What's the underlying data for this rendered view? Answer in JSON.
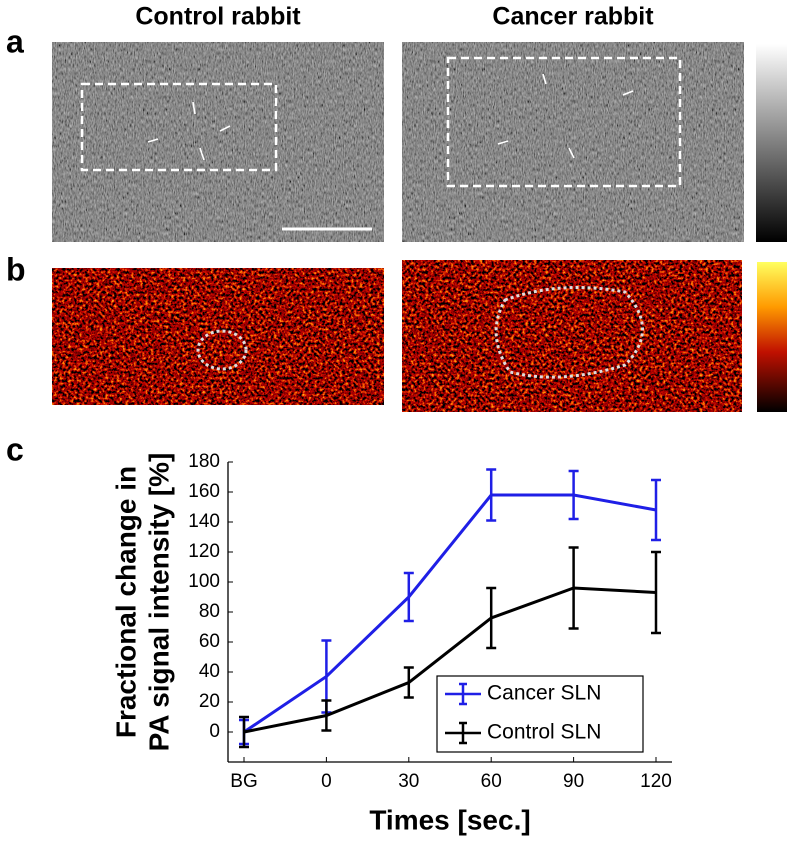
{
  "panels": {
    "a": "a",
    "b": "b",
    "c": "c"
  },
  "columns": [
    "Control rabbit",
    "Cancer rabbit"
  ],
  "chart_data": {
    "type": "line",
    "xlabel": "Times [sec.]",
    "ylabel": [
      "Fractional change in",
      "PA signal intensity [%]"
    ],
    "categories": [
      "BG",
      "0",
      "30",
      "60",
      "90",
      "120"
    ],
    "ylim": [
      -20,
      180
    ],
    "yticks": [
      0,
      20,
      40,
      60,
      80,
      100,
      120,
      140,
      160,
      180
    ],
    "grid": false,
    "legend": "lower right",
    "series": [
      {
        "name": "Cancer SLN",
        "color": "#1f1fe6",
        "values": [
          0,
          37,
          90,
          158,
          158,
          148
        ],
        "errors": [
          8,
          24,
          16,
          17,
          16,
          20
        ]
      },
      {
        "name": "Control SLN",
        "color": "#000000",
        "values": [
          0,
          11,
          33,
          76,
          96,
          93
        ],
        "errors": [
          10,
          10,
          10,
          20,
          27,
          27
        ]
      }
    ]
  }
}
